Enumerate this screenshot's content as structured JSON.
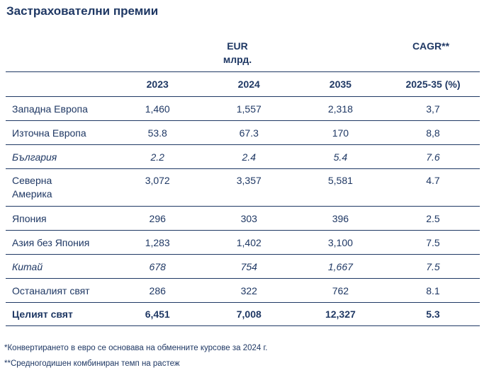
{
  "title": "Застрахователни премии",
  "unit_line1": "EUR",
  "unit_line2": "млрд.",
  "cagr_label": "CAGR**",
  "columns": [
    "",
    "2023",
    "2024",
    "2035",
    "2025-35 (%)"
  ],
  "rows": [
    {
      "label": "Западна Европа",
      "v2023": "1,460",
      "v2024": "1,557",
      "v2035": "2,318",
      "cagr": "3,7"
    },
    {
      "label": "Източна Европа",
      "v2023": "53.8",
      "v2024": "67.3",
      "v2035": "170",
      "cagr": "8,8"
    },
    {
      "label": "България",
      "v2023": "2.2",
      "v2024": "2.4",
      "v2035": "5.4",
      "cagr": "7.6"
    },
    {
      "label_line1": "Северна",
      "label_line2": "Америка",
      "v2023": "3,072",
      "v2024": "3,357",
      "v2035": "5,581",
      "cagr": "4.7"
    },
    {
      "label": "Япония",
      "v2023": "296",
      "v2024": "303",
      "v2035": "396",
      "cagr": "2.5"
    },
    {
      "label": "Азия без Япония",
      "v2023": "1,283",
      "v2024": "1,402",
      "v2035": "3,100",
      "cagr": "7.5"
    },
    {
      "label": "Китай",
      "v2023": "678",
      "v2024": "754",
      "v2035": "1,667",
      "cagr": "7.5"
    },
    {
      "label": "Останалият свят",
      "v2023": "286",
      "v2024": "322",
      "v2035": "762",
      "cagr": "8.1"
    },
    {
      "label": "Целият свят",
      "v2023": "6,451",
      "v2024": "7,008",
      "v2035": "12,327",
      "cagr": "5.3"
    }
  ],
  "footnote1": "*Конвертирането в евро се основава на обменните курсове за 2024 г.",
  "footnote2": "**Средногодишен комбиниран темп на растеж"
}
